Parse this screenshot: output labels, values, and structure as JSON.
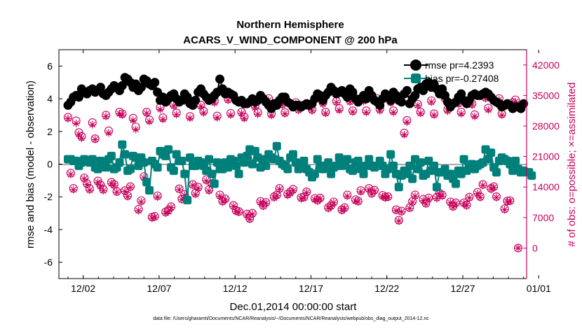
{
  "chart_data": {
    "type": "line",
    "title": "Northern Hemisphere",
    "subtitle": "ACARS_V_WIND_COMPONENT @ 200 hPa",
    "xlabel": "Dec.01,2014 00:00:00 start",
    "ylabel": "rmse and bias (model - observation)",
    "y2label": "# of obs: o=possible; ×=assimilated",
    "xticks": [
      "12/02",
      "12/07",
      "12/12",
      "12/17",
      "12/22",
      "12/27",
      "01/01"
    ],
    "yticks": [
      "6",
      "4",
      "2",
      "0",
      "-2",
      "-4",
      "-6"
    ],
    "y2ticks": [
      "42000",
      "35000",
      "28000",
      "21000",
      "14000",
      "7000",
      "0"
    ],
    "xlim": [
      0.4,
      31.2
    ],
    "ylim": [
      -7,
      7
    ],
    "y2lim": [
      -7000,
      45500
    ],
    "legend": [
      "rmse pr=4.2393",
      "bias pr=-0.27408"
    ],
    "colors": {
      "rmse": "#000000",
      "bias": "#00807a",
      "obs": "#c8005a",
      "zero": "#aaaaaa"
    },
    "rmse": [
      3.6,
      3.8,
      4.1,
      4.2,
      4.1,
      4.6,
      4.4,
      4.3,
      4.5,
      4.6,
      4.4,
      4.5,
      4.7,
      4.3,
      4.2,
      4.4,
      4.6,
      4.8,
      4.7,
      4.5,
      4.8,
      5.3,
      5.2,
      5.0,
      4.7,
      4.9,
      4.5,
      4.7,
      5.2,
      5.1,
      4.9,
      4.8,
      5.0,
      4.4,
      3.9,
      4.1,
      3.8,
      4.0,
      4.2,
      4.3,
      4.0,
      3.8,
      3.9,
      4.3,
      4.1,
      3.7,
      3.6,
      3.9,
      4.4,
      4.6,
      4.3,
      4.1,
      3.9,
      4.0,
      4.2,
      4.4,
      5.2,
      4.6,
      4.3,
      4.4,
      4.3,
      4.2,
      3.9,
      3.8,
      3.9,
      3.7,
      3.7,
      3.8,
      4.0,
      3.8,
      3.9,
      4.2,
      4.0,
      3.8,
      3.6,
      3.4,
      3.7,
      3.6,
      3.9,
      4.1,
      4.1,
      3.8,
      3.7,
      3.5,
      3.6,
      3.6,
      3.5,
      3.6,
      3.7,
      3.6,
      3.7,
      4.0,
      4.3,
      4.2,
      3.9,
      4.2,
      4.4,
      4.7,
      4.5,
      4.3,
      4.4,
      4.5,
      4.3,
      4.1,
      4.6,
      4.4,
      4.0,
      3.8,
      4.0,
      4.2,
      4.0,
      4.5,
      4.2,
      3.9,
      3.8,
      3.6,
      4.0,
      4.3,
      4.1,
      3.9,
      4.4,
      4.2,
      3.9,
      3.8,
      4.3,
      4.5,
      3.7,
      4.0,
      4.2,
      4.6,
      4.7,
      4.5,
      4.9,
      5.0,
      4.7,
      4.9,
      4.6,
      4.3,
      4.6,
      4.2,
      3.8,
      3.5,
      3.7,
      3.8,
      4.1,
      4.3,
      3.9,
      3.7,
      3.9,
      4.2,
      4.3,
      4.2,
      4.2,
      4.3,
      4.4,
      4.3,
      4.1,
      3.9,
      3.8,
      3.7,
      3.5,
      3.6,
      3.7,
      3.6,
      3.4,
      3.5,
      3.5,
      3.4,
      3.7
    ],
    "bias": [
      0.3,
      0.3,
      0.2,
      0.2,
      -0.1,
      0.1,
      0.3,
      0.2,
      0.1,
      0.3,
      -0.2,
      -0.3,
      0.2,
      -0.1,
      -0.2,
      0.3,
      0.5,
      -0.3,
      -0.2,
      0.1,
      1.2,
      0.6,
      -0.4,
      -0.3,
      0.5,
      0.4,
      -0.1,
      0.4,
      0.1,
      -1.1,
      -1.6,
      0.2,
      0.0,
      -0.2,
      0.8,
      0.6,
      0.5,
      0.9,
      -0.2,
      -0.4,
      0.6,
      0.2,
      0.2,
      -0.6,
      -2.2,
      0.4,
      -0.1,
      -0.1,
      0.2,
      0.1,
      -0.1,
      -0.4,
      0.3,
      -0.6,
      -1.2,
      0.1,
      -0.3,
      -0.3,
      0.1,
      -0.2,
      0.3,
      0.2,
      -0.1,
      -0.6,
      0.4,
      0.1,
      0.5,
      0.9,
      0.0,
      0.8,
      0.4,
      -0.2,
      0.3,
      -0.1,
      0.6,
      0.4,
      0.3,
      1.1,
      0.2,
      0.0,
      -0.1,
      -0.3,
      0.4,
      0.6,
      0.1,
      -0.3,
      -0.1,
      0.2,
      -0.3,
      -0.5,
      -0.8,
      -0.6,
      0.3,
      -0.1,
      -0.3,
      -0.1,
      0.1,
      -0.6,
      -0.2,
      -0.1,
      0.4,
      -0.1,
      0.2,
      0.3,
      -0.3,
      -0.4,
      0.1,
      0.2,
      -0.3,
      -0.6,
      -0.1,
      0.3,
      -0.1,
      -0.2,
      -0.1,
      0.2,
      -0.1,
      -0.6,
      -0.3,
      0.6,
      -0.1,
      -0.6,
      -1.4,
      -0.7,
      -0.4,
      -0.6,
      -0.1,
      -0.9,
      0.3,
      -0.3,
      0.1,
      -0.7,
      -0.6,
      0.2,
      -0.4,
      -0.1,
      -1.4,
      -0.5,
      -0.5,
      -0.3,
      -0.7,
      -0.6,
      -0.9,
      -1.2,
      -0.4,
      -0.6,
      0.3,
      -0.4,
      -0.2,
      0.0,
      -0.3,
      -0.1,
      0.0,
      0.1,
      0.9,
      0.3,
      0.7,
      -0.2,
      -0.5,
      0.2,
      0.4,
      0.3,
      0.2,
      0.0,
      -0.4,
      0.2,
      -0.3,
      -0.5,
      -0.4,
      -0.5,
      -0.5,
      -0.7
    ],
    "obs_possible": [
      30000,
      17200,
      13700,
      29200,
      26500,
      25600,
      16100,
      14800,
      13600,
      28800,
      25100,
      15400,
      14500,
      13500,
      30500,
      26900,
      15100,
      14600,
      13000,
      31200,
      30800,
      13200,
      12000,
      14100,
      29800,
      27800,
      8900,
      10900,
      16400,
      31200,
      29400,
      7100,
      7300,
      12000,
      32300,
      29900,
      8300,
      8700,
      9500,
      32900,
      31000,
      13600,
      11300,
      12300,
      33900,
      30200,
      14600,
      12600,
      14000,
      32800,
      31400,
      15700,
      13400,
      14800,
      33700,
      30300,
      12200,
      10800,
      11300,
      34200,
      30900,
      9800,
      8600,
      8400,
      31200,
      30100,
      7800,
      6800,
      8000,
      32600,
      31100,
      10700,
      9800,
      10500,
      34300,
      30800,
      11800,
      12200,
      13700,
      33100,
      31100,
      12400,
      12900,
      13500,
      33400,
      31900,
      11600,
      11700,
      12900,
      32800,
      31800,
      11400,
      11000,
      11500,
      33400,
      31200,
      9300,
      9800,
      10600,
      33700,
      32000,
      8800,
      9300,
      12200,
      33800,
      31500,
      11100,
      10800,
      13200,
      34000,
      31500,
      13700,
      12600,
      13300,
      34300,
      31900,
      12100,
      11700,
      11800,
      33600,
      31500,
      8800,
      6400,
      8500,
      26400,
      29300,
      9300,
      10700,
      12200,
      33000,
      31200,
      11200,
      10300,
      11500,
      33800,
      30800,
      11700,
      12600,
      12200,
      34400,
      31800,
      10600,
      9600,
      10400,
      33300,
      31200,
      10400,
      9900,
      11700,
      33100,
      30600,
      12800,
      11800,
      14600,
      34600,
      32100,
      13700,
      14100,
      11800,
      34300,
      30800,
      9000,
      10800,
      10900,
      33400,
      34000,
      0
    ],
    "obs_assimilated": [
      29700,
      16900,
      13400,
      28600,
      26100,
      25200,
      15900,
      14600,
      13300,
      28300,
      24900,
      15100,
      14200,
      13200,
      30200,
      26400,
      14800,
      14300,
      12800,
      30800,
      30500,
      13000,
      11800,
      13900,
      29300,
      27200,
      8600,
      10600,
      16100,
      30900,
      29000,
      6900,
      7100,
      11700,
      31800,
      29500,
      8000,
      8400,
      9300,
      32600,
      30600,
      13400,
      11100,
      12100,
      33500,
      29800,
      14400,
      12300,
      13700,
      32500,
      31000,
      15400,
      13100,
      14500,
      33300,
      29900,
      11900,
      10600,
      11100,
      33900,
      30500,
      9600,
      8400,
      8200,
      30900,
      29700,
      7600,
      6600,
      7800,
      32200,
      30700,
      10500,
      9600,
      10300,
      33900,
      30400,
      11500,
      12000,
      13500,
      32800,
      30800,
      12100,
      12600,
      13200,
      33100,
      31600,
      11300,
      11500,
      12700,
      32400,
      31500,
      11100,
      10800,
      11300,
      33000,
      30900,
      9100,
      9600,
      10400,
      33400,
      31600,
      8600,
      9100,
      11900,
      33500,
      31200,
      10800,
      10600,
      12900,
      33600,
      31100,
      13400,
      12400,
      13100,
      34000,
      31500,
      11800,
      11500,
      11600,
      33300,
      31100,
      8600,
      6200,
      8300,
      26000,
      28900,
      9100,
      10500,
      11900,
      32700,
      30900,
      10900,
      10100,
      11200,
      33500,
      30500,
      11400,
      12400,
      11900,
      34100,
      31400,
      10400,
      9400,
      10200,
      33000,
      30800,
      10200,
      9700,
      11500,
      32800,
      30200,
      12500,
      11600,
      14400,
      34300,
      31700,
      13500,
      13900,
      11600,
      34000,
      30500,
      8800,
      10600,
      10700,
      33100,
      33600,
      0
    ],
    "footnote": "data file: /Users/gharamti/Documents/NCAR/Reanalysis/~/Documents/NCAR/Reanalysis/webpub/obs_diag_output_2014-12.nc"
  }
}
